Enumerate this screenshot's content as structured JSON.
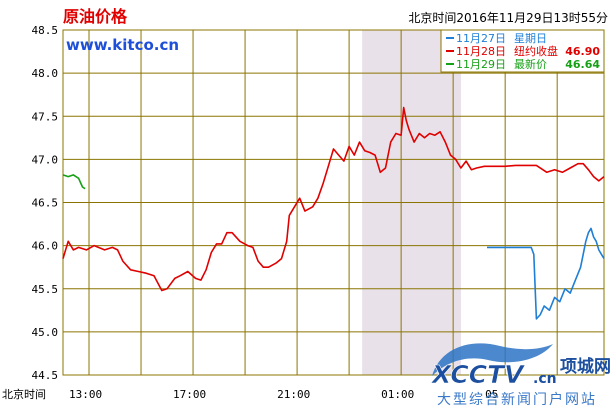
{
  "chart_data": {
    "type": "line",
    "title": "原油价格",
    "site": "www.kitco.cn",
    "timestamp": "北京时间2016年11月29日13时55分",
    "x_axis_label": "北京时间",
    "x_ticks": [
      {
        "h": 13,
        "label": "13:00"
      },
      {
        "h": 17,
        "label": "17:00"
      },
      {
        "h": 21,
        "label": "21:00"
      },
      {
        "h": 25,
        "label": "01:00"
      },
      {
        "h": 29,
        "label": "05"
      }
    ],
    "xlim": [
      12.0,
      32.8
    ],
    "ylim": [
      44.5,
      48.5
    ],
    "y_ticks": [
      "48.5",
      "48.0",
      "47.5",
      "47.0",
      "46.5",
      "46.0",
      "45.5",
      "45.0",
      "44.5"
    ],
    "grid": true,
    "highlight_range": [
      23.5,
      27.3
    ],
    "legend": [
      {
        "date": "11月27日",
        "label": "星期日",
        "value": "",
        "color": "#1f7fd6"
      },
      {
        "date": "11月28日",
        "label": "纽约收盘",
        "value": "46.90",
        "color": "#e00000"
      },
      {
        "date": "11月29日",
        "label": "最新价",
        "value": "46.64",
        "color": "#16a016"
      }
    ],
    "series": [
      {
        "key": "nov27",
        "color": "#1f7fd6",
        "points": [
          [
            28.3,
            45.98
          ],
          [
            30.0,
            45.98
          ],
          [
            30.1,
            45.9
          ],
          [
            30.2,
            45.15
          ],
          [
            30.35,
            45.2
          ],
          [
            30.5,
            45.3
          ],
          [
            30.7,
            45.25
          ],
          [
            30.9,
            45.4
          ],
          [
            31.1,
            45.35
          ],
          [
            31.3,
            45.5
          ],
          [
            31.5,
            45.45
          ],
          [
            31.7,
            45.6
          ],
          [
            31.9,
            45.75
          ],
          [
            32.0,
            45.9
          ],
          [
            32.1,
            46.05
          ],
          [
            32.2,
            46.15
          ],
          [
            32.3,
            46.2
          ],
          [
            32.4,
            46.1
          ],
          [
            32.5,
            46.05
          ],
          [
            32.6,
            45.95
          ],
          [
            32.7,
            45.9
          ],
          [
            32.8,
            45.85
          ]
        ]
      },
      {
        "key": "nov28",
        "color": "#e00000",
        "points": [
          [
            12.0,
            45.85
          ],
          [
            12.2,
            46.05
          ],
          [
            12.4,
            45.95
          ],
          [
            12.6,
            45.98
          ],
          [
            12.9,
            45.95
          ],
          [
            13.2,
            46.0
          ],
          [
            13.6,
            45.95
          ],
          [
            13.9,
            45.98
          ],
          [
            14.1,
            45.95
          ],
          [
            14.3,
            45.82
          ],
          [
            14.6,
            45.72
          ],
          [
            14.9,
            45.7
          ],
          [
            15.2,
            45.68
          ],
          [
            15.5,
            45.65
          ],
          [
            15.8,
            45.48
          ],
          [
            16.0,
            45.5
          ],
          [
            16.3,
            45.62
          ],
          [
            16.5,
            45.65
          ],
          [
            16.8,
            45.7
          ],
          [
            17.1,
            45.62
          ],
          [
            17.3,
            45.6
          ],
          [
            17.5,
            45.72
          ],
          [
            17.7,
            45.92
          ],
          [
            17.9,
            46.02
          ],
          [
            18.1,
            46.02
          ],
          [
            18.3,
            46.15
          ],
          [
            18.5,
            46.15
          ],
          [
            18.8,
            46.05
          ],
          [
            19.1,
            46.0
          ],
          [
            19.3,
            45.98
          ],
          [
            19.5,
            45.82
          ],
          [
            19.7,
            45.75
          ],
          [
            19.9,
            45.75
          ],
          [
            20.2,
            45.8
          ],
          [
            20.4,
            45.85
          ],
          [
            20.6,
            46.05
          ],
          [
            20.7,
            46.35
          ],
          [
            20.9,
            46.45
          ],
          [
            21.1,
            46.55
          ],
          [
            21.3,
            46.4
          ],
          [
            21.6,
            46.45
          ],
          [
            21.8,
            46.55
          ],
          [
            22.0,
            46.72
          ],
          [
            22.2,
            46.92
          ],
          [
            22.4,
            47.12
          ],
          [
            22.6,
            47.05
          ],
          [
            22.8,
            46.98
          ],
          [
            23.0,
            47.15
          ],
          [
            23.2,
            47.05
          ],
          [
            23.4,
            47.2
          ],
          [
            23.6,
            47.1
          ],
          [
            23.8,
            47.08
          ],
          [
            24.0,
            47.05
          ],
          [
            24.2,
            46.85
          ],
          [
            24.4,
            46.9
          ],
          [
            24.6,
            47.2
          ],
          [
            24.8,
            47.3
          ],
          [
            25.0,
            47.28
          ],
          [
            25.1,
            47.6
          ],
          [
            25.2,
            47.45
          ],
          [
            25.3,
            47.35
          ],
          [
            25.5,
            47.2
          ],
          [
            25.7,
            47.3
          ],
          [
            25.9,
            47.25
          ],
          [
            26.1,
            47.3
          ],
          [
            26.3,
            47.28
          ],
          [
            26.5,
            47.32
          ],
          [
            26.7,
            47.2
          ],
          [
            26.9,
            47.05
          ],
          [
            27.1,
            47.0
          ],
          [
            27.3,
            46.9
          ],
          [
            27.5,
            46.98
          ],
          [
            27.7,
            46.88
          ],
          [
            27.9,
            46.9
          ],
          [
            28.2,
            46.92
          ],
          [
            28.6,
            46.92
          ],
          [
            29.0,
            46.92
          ],
          [
            29.4,
            46.93
          ],
          [
            29.8,
            46.93
          ],
          [
            30.2,
            46.93
          ],
          [
            30.6,
            46.85
          ],
          [
            30.9,
            46.88
          ],
          [
            31.2,
            46.85
          ],
          [
            31.5,
            46.9
          ],
          [
            31.8,
            46.95
          ],
          [
            32.0,
            46.95
          ],
          [
            32.2,
            46.88
          ],
          [
            32.4,
            46.8
          ],
          [
            32.6,
            46.75
          ],
          [
            32.8,
            46.8
          ]
        ]
      },
      {
        "key": "nov29",
        "color": "#16a016",
        "points": [
          [
            12.0,
            46.82
          ],
          [
            12.2,
            46.8
          ],
          [
            12.4,
            46.82
          ],
          [
            12.6,
            46.78
          ],
          [
            12.75,
            46.68
          ],
          [
            12.85,
            46.66
          ]
        ]
      }
    ]
  },
  "watermark": {
    "logo_text": "XCCTV",
    "logo_suffix": ".cn",
    "brand": "项城网",
    "slogan": "大型综合新闻门户网站"
  }
}
